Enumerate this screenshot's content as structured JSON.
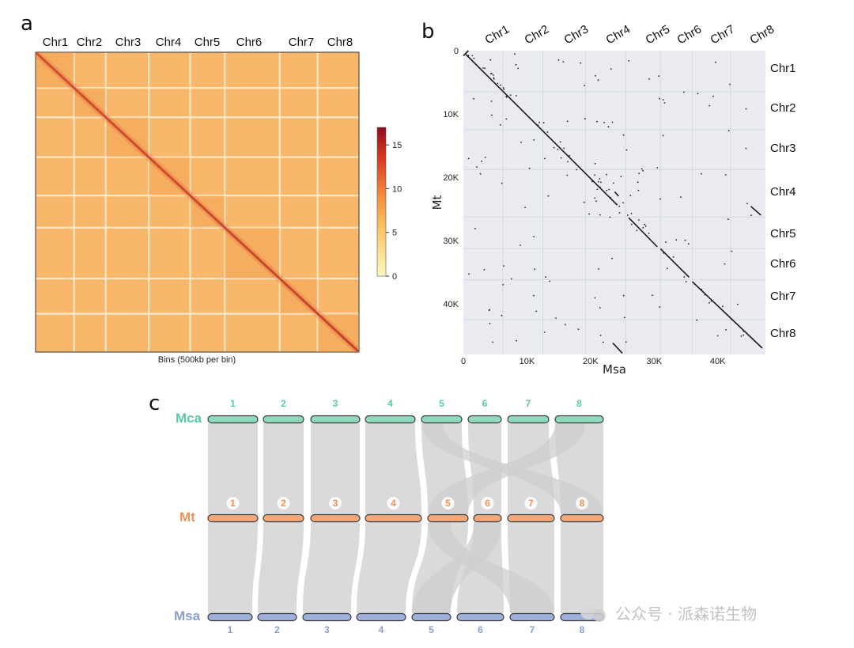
{
  "panels": {
    "a": {
      "letter": "a",
      "chromosomes": [
        "Chr1",
        "Chr2",
        "Chr3",
        "Chr4",
        "Chr5",
        "Chr6",
        "Chr7",
        "Chr8"
      ],
      "xlabel": "Bins (500kb per bin)",
      "colorbar": {
        "ticks": [
          "15",
          "10",
          "5",
          "0"
        ],
        "max": 17,
        "colors": [
          "#fff7c0",
          "#fdc866",
          "#f58a3a",
          "#d9361e",
          "#8e0b1f"
        ]
      }
    },
    "b": {
      "letter": "b",
      "top_chromosomes": [
        "Chr1",
        "Chr2",
        "Chr3",
        "Chr4",
        "Chr5",
        "Chr6",
        "Chr7",
        "Chr8"
      ],
      "right_chromosomes": [
        "Chr1",
        "Chr2",
        "Chr3",
        "Chr4",
        "Chr5",
        "Chr6",
        "Chr7",
        "Chr8"
      ],
      "x_ticks": [
        "0",
        "10K",
        "20K",
        "30K",
        "40K"
      ],
      "y_ticks": [
        "0",
        "10K",
        "20K",
        "30K",
        "40K"
      ],
      "xlabel": "Msa",
      "ylabel": "Mt"
    },
    "c": {
      "letter": "c",
      "species": [
        {
          "name": "Mca",
          "color": "#5cc8a0",
          "bar_color": "#8fd9bc",
          "numbers": [
            "1",
            "2",
            "3",
            "4",
            "5",
            "6",
            "7",
            "8"
          ]
        },
        {
          "name": "Mt",
          "color": "#e8955a",
          "bar_color": "#f2a879",
          "numbers": [
            "1",
            "2",
            "3",
            "4",
            "5",
            "6",
            "7",
            "8"
          ]
        },
        {
          "name": "Msa",
          "color": "#8a9ed0",
          "bar_color": "#9fb0da",
          "numbers": [
            "1",
            "2",
            "3",
            "4",
            "5",
            "6",
            "7",
            "8"
          ]
        }
      ]
    }
  },
  "watermark": "公众号 · 派森诺生物",
  "chart_data": [
    {
      "type": "heatmap",
      "title": "",
      "xlabel": "Bins (500kb per bin)",
      "categories": [
        "Chr1",
        "Chr2",
        "Chr3",
        "Chr4",
        "Chr5",
        "Chr6",
        "Chr7",
        "Chr8"
      ],
      "colorbar_range": [
        0,
        17
      ],
      "colorbar_ticks": [
        0,
        5,
        10,
        15
      ]
    },
    {
      "type": "scatter",
      "title": "",
      "xlabel": "Msa",
      "ylabel": "Mt",
      "xlim": [
        0,
        47500
      ],
      "ylim": [
        0,
        48000
      ],
      "x_chromosome_starts": [
        0,
        6200,
        12500,
        19200,
        25500,
        31000,
        36000,
        42000
      ],
      "y_chromosome_starts": [
        0,
        6500,
        12500,
        18800,
        26300,
        31300,
        36200,
        42500
      ],
      "main_diagonal": [
        [
          0,
          0
        ],
        [
          24000,
          24200
        ],
        [
          26000,
          26500
        ],
        [
          47000,
          47000
        ]
      ]
    },
    {
      "type": "table",
      "title": "",
      "rows": [
        "Mca",
        "Mt",
        "Msa"
      ],
      "columns": [
        "1",
        "2",
        "3",
        "4",
        "5",
        "6",
        "7",
        "8"
      ]
    }
  ]
}
